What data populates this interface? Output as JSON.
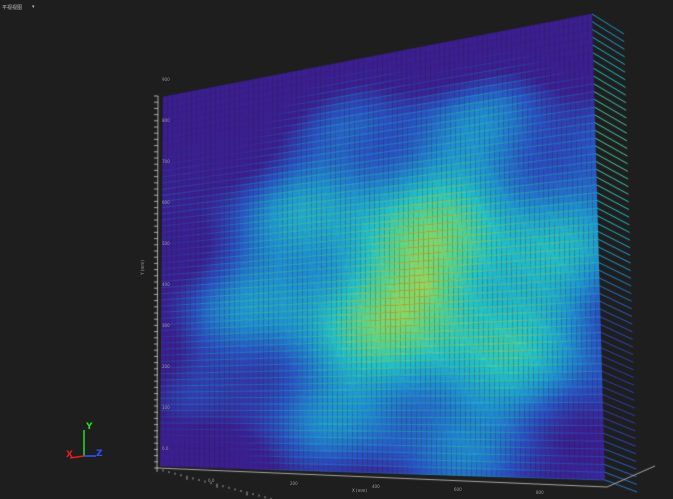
{
  "toolbar": {
    "view_select": "平视视图",
    "dropdown_icon": "caret-down-icon"
  },
  "plot": {
    "colormap": [
      "#3b1f8f",
      "#2b4fc0",
      "#1f8fd0",
      "#22c0c8",
      "#5ad68a",
      "#c8d83a",
      "#e0a020"
    ],
    "x_axis": {
      "label": "X (mm)",
      "ticks": [
        "0.0",
        "200",
        "400",
        "600",
        "800"
      ]
    },
    "y_axis": {
      "label": "Y (mm)",
      "ticks": [
        "0.0",
        "100",
        "200",
        "300",
        "400",
        "500",
        "600",
        "700",
        "800",
        "900"
      ]
    }
  },
  "triad": {
    "x": "X",
    "y": "Y",
    "z": "Z",
    "x_color": "#e02020",
    "y_color": "#20e020",
    "z_color": "#3050ff"
  }
}
